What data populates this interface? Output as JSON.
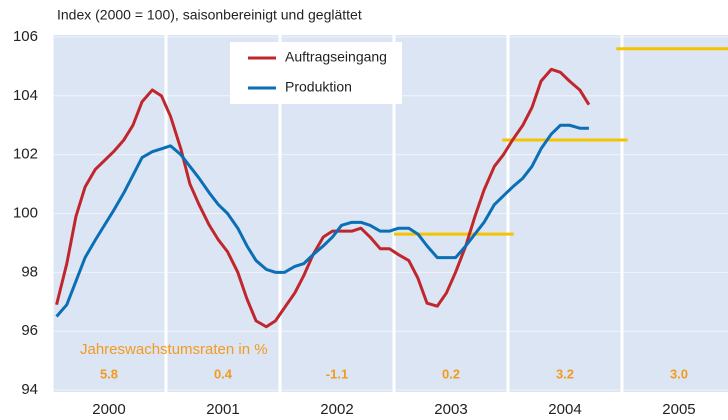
{
  "chart_data": {
    "type": "line",
    "title": "Index (2000 = 100), saisonbereinigt und geglättet",
    "x": [
      2000.04,
      2000.13,
      2000.21,
      2000.29,
      2000.38,
      2000.46,
      2000.54,
      2000.63,
      2000.71,
      2000.79,
      2000.88,
      2000.96,
      2001.04,
      2001.13,
      2001.21,
      2001.29,
      2001.38,
      2001.46,
      2001.54,
      2001.63,
      2001.71,
      2001.79,
      2001.88,
      2001.96,
      2002.04,
      2002.13,
      2002.21,
      2002.29,
      2002.38,
      2002.46,
      2002.54,
      2002.63,
      2002.71,
      2002.79,
      2002.88,
      2002.96,
      2003.04,
      2003.13,
      2003.21,
      2003.29,
      2003.38,
      2003.46,
      2003.54,
      2003.63,
      2003.71,
      2003.79,
      2003.88,
      2003.96,
      2004.04,
      2004.13,
      2004.21,
      2004.29,
      2004.38,
      2004.46,
      2004.54,
      2004.63,
      2004.71
    ],
    "series": [
      {
        "name": "Auftragseingang",
        "color": "#c0272d",
        "values": [
          96.9,
          98.3,
          99.9,
          100.9,
          101.5,
          101.8,
          102.1,
          102.5,
          103.0,
          103.8,
          104.2,
          104.0,
          103.3,
          102.2,
          101.0,
          100.3,
          99.6,
          99.1,
          98.7,
          98.0,
          97.1,
          96.35,
          96.15,
          96.35,
          96.8,
          97.3,
          97.9,
          98.6,
          99.2,
          99.4,
          99.4,
          99.4,
          99.5,
          99.2,
          98.8,
          98.8,
          98.6,
          98.4,
          97.8,
          96.95,
          96.85,
          97.3,
          98.0,
          98.9,
          99.9,
          100.8,
          101.6,
          102.0,
          102.5,
          103.0,
          103.6,
          104.5,
          104.9,
          104.8,
          104.5,
          104.2,
          103.7
        ]
      },
      {
        "name": "Produktion",
        "color": "#0a6fb5",
        "values": [
          96.5,
          96.9,
          97.7,
          98.5,
          99.1,
          99.6,
          100.1,
          100.7,
          101.3,
          101.9,
          102.1,
          102.2,
          102.3,
          102.0,
          101.6,
          101.2,
          100.7,
          100.3,
          100.0,
          99.5,
          98.9,
          98.4,
          98.1,
          98.0,
          98.0,
          98.2,
          98.3,
          98.6,
          98.9,
          99.2,
          99.6,
          99.7,
          99.7,
          99.6,
          99.4,
          99.4,
          99.5,
          99.5,
          99.3,
          98.9,
          98.5,
          98.5,
          98.5,
          98.9,
          99.3,
          99.7,
          100.3,
          100.6,
          100.9,
          101.2,
          101.6,
          102.2,
          102.7,
          103.0,
          103.0,
          102.9,
          102.9
        ]
      }
    ],
    "levels": [
      {
        "x": [
          2003.0,
          2004.05
        ],
        "value": 99.3
      },
      {
        "x": [
          2003.95,
          2005.05
        ],
        "value": 102.5
      },
      {
        "x": [
          2004.95,
          2005.93
        ],
        "value": 105.6
      }
    ],
    "levels_color": "#f5c400",
    "growth_rates": {
      "label": "Jahreswachstumsraten in %",
      "color": "#f39a1f",
      "values": [
        5.8,
        0.4,
        -1.1,
        0.2,
        3.2,
        3.0
      ],
      "value_labels": [
        "5.8",
        "0.4",
        "-1.1",
        "0.2",
        "3.2",
        "3.0"
      ]
    },
    "xlim": [
      2000,
      2005.93
    ],
    "xticks": [
      2000,
      2001,
      2002,
      2003,
      2004,
      2005
    ],
    "ylim": [
      94,
      106
    ],
    "yticks": [
      94,
      96,
      98,
      100,
      102,
      104,
      106
    ],
    "grid": true,
    "background": "#dce5f3"
  }
}
